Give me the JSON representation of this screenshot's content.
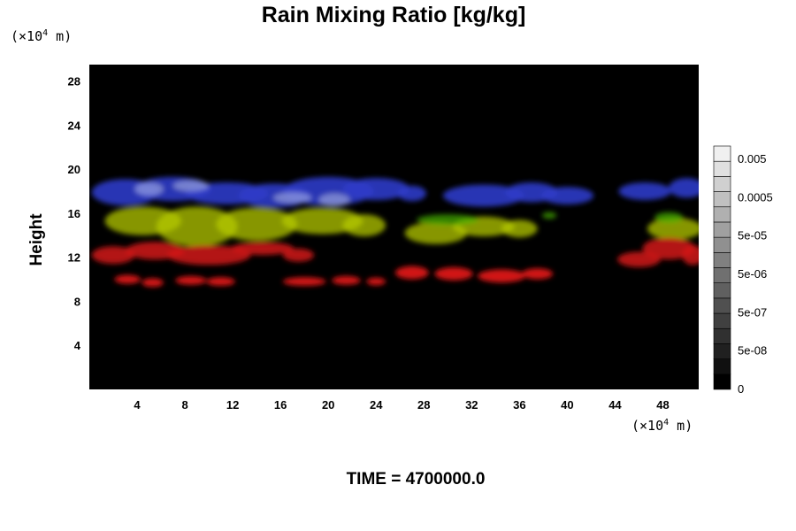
{
  "chart_data": {
    "type": "heatmap",
    "title": "Rain Mixing Ratio [kg/kg]",
    "ylabel": "Height",
    "xlabel": "",
    "y_unit": {
      "prefix": "(×10",
      "exp": "4",
      "suffix": " m)"
    },
    "x_unit": {
      "prefix": "(×10",
      "exp": "4",
      "suffix": " m)"
    },
    "xlim": [
      0,
      51
    ],
    "ylim": [
      0,
      29.5
    ],
    "x_ticks": [
      4,
      8,
      12,
      16,
      20,
      24,
      28,
      32,
      36,
      40,
      44,
      48
    ],
    "y_ticks": [
      4,
      8,
      12,
      16,
      20,
      24,
      28
    ],
    "colorbar": {
      "labels": [
        "0.005",
        "0.0005",
        "5e-05",
        "5e-06",
        "5e-07",
        "5e-08",
        "0"
      ],
      "levels": 16,
      "color_min": "#000000",
      "color_max": "#f0f0f0"
    },
    "background": "#000000",
    "bands": [
      {
        "name": "blue",
        "color": "#2d3cc8",
        "opacity": 0.9,
        "blobs": [
          [
            3,
            17.9,
            2.8,
            1.2
          ],
          [
            7,
            18.2,
            3.2,
            1.1
          ],
          [
            11.5,
            17.8,
            3.5,
            1.0
          ],
          [
            15.5,
            17.6,
            3,
            1.1
          ],
          [
            20,
            18.0,
            3.8,
            1.3
          ],
          [
            24,
            18.2,
            2.8,
            1.0
          ],
          [
            27,
            17.8,
            1.2,
            0.7
          ],
          [
            33,
            17.6,
            3.4,
            1.0
          ],
          [
            37,
            17.9,
            2.2,
            0.9
          ],
          [
            40,
            17.6,
            2.2,
            0.8
          ],
          [
            46.5,
            18.0,
            2.2,
            0.8
          ],
          [
            50,
            18.3,
            1.5,
            0.9
          ]
        ]
      },
      {
        "name": "blue-white",
        "color": "#b4bee6",
        "opacity": 0.55,
        "blobs": [
          [
            5,
            18.2,
            1.2,
            0.6
          ],
          [
            8.5,
            18.5,
            1.5,
            0.5
          ],
          [
            17,
            17.4,
            1.6,
            0.5
          ],
          [
            20.5,
            17.2,
            1.3,
            0.6
          ]
        ]
      },
      {
        "name": "yellow-green",
        "color": "#b4c800",
        "opacity": 0.75,
        "blobs": [
          [
            4.5,
            15.3,
            3.2,
            1.3
          ],
          [
            9,
            14.8,
            3.4,
            1.8
          ],
          [
            14,
            15.0,
            3.4,
            1.5
          ],
          [
            19.5,
            15.3,
            3.4,
            1.2
          ],
          [
            23,
            14.9,
            1.8,
            1.0
          ],
          [
            29,
            14.2,
            2.6,
            1.0
          ],
          [
            33,
            14.8,
            2.6,
            0.9
          ],
          [
            36,
            14.6,
            1.5,
            0.8
          ],
          [
            49,
            14.6,
            2.3,
            1.0
          ]
        ]
      },
      {
        "name": "green",
        "color": "#46b400",
        "opacity": 0.7,
        "blobs": [
          [
            30,
            15.4,
            2.6,
            0.5
          ],
          [
            38.5,
            15.8,
            0.6,
            0.3
          ],
          [
            48.5,
            15.6,
            1.2,
            0.5
          ]
        ]
      },
      {
        "name": "red-upper",
        "color": "#d21414",
        "opacity": 0.85,
        "blobs": [
          [
            2,
            12.2,
            1.8,
            0.8
          ],
          [
            5.5,
            12.6,
            2.5,
            0.8
          ],
          [
            10,
            12.2,
            3.5,
            0.9
          ],
          [
            14.5,
            12.8,
            2.6,
            0.6
          ],
          [
            17.5,
            12.2,
            1.3,
            0.6
          ],
          [
            46,
            11.8,
            1.8,
            0.7
          ],
          [
            48.5,
            12.8,
            2.2,
            1.0
          ],
          [
            50.5,
            12.2,
            0.9,
            0.9
          ]
        ]
      },
      {
        "name": "red-lower",
        "color": "#dc1414",
        "opacity": 0.95,
        "blobs": [
          [
            3.2,
            10.0,
            1.1,
            0.4
          ],
          [
            5.3,
            9.7,
            0.9,
            0.4
          ],
          [
            8.5,
            9.9,
            1.3,
            0.4
          ],
          [
            11,
            9.8,
            1.2,
            0.4
          ],
          [
            18,
            9.8,
            1.8,
            0.4
          ],
          [
            21.5,
            9.9,
            1.2,
            0.4
          ],
          [
            24,
            9.8,
            0.8,
            0.35
          ],
          [
            27,
            10.6,
            1.4,
            0.6
          ],
          [
            30.5,
            10.5,
            1.6,
            0.6
          ],
          [
            34.5,
            10.3,
            2.0,
            0.6
          ],
          [
            37.5,
            10.5,
            1.3,
            0.5
          ]
        ]
      }
    ]
  },
  "footer": {
    "time_label": "TIME = 4700000.0"
  }
}
